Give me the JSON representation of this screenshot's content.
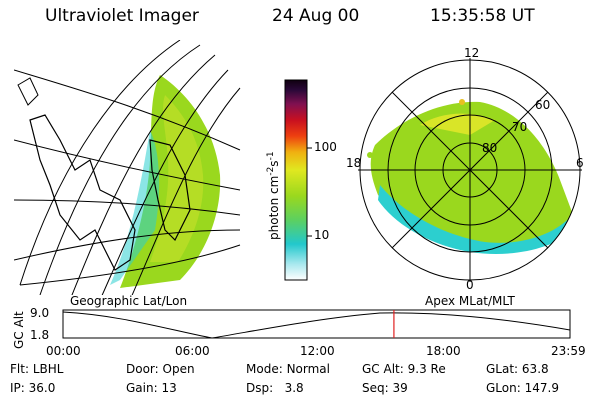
{
  "header": {
    "instrument": "Ultraviolet Imager",
    "date": "24 Aug 00",
    "time": "15:35:58 UT"
  },
  "colorbar": {
    "unit_text": "photon cm",
    "unit_exp1": "-2",
    "unit_s": "s",
    "unit_exp2": "-1",
    "ticks": [
      {
        "label": "100",
        "value": 100
      },
      {
        "label": "10",
        "value": 10
      }
    ]
  },
  "polar": {
    "lat_labels": [
      "60",
      "70",
      "80"
    ],
    "mlt_labels": {
      "top": "12",
      "left": "18",
      "right": "6",
      "bottom": "0"
    }
  },
  "panel_labels": {
    "left": "Geographic Lat/Lon",
    "right": "Apex MLat/MLT"
  },
  "altitude_plot": {
    "ylabel": "GC Alt",
    "y_ticks": [
      "9.0",
      "1.8"
    ],
    "x_ticks": [
      "00:00",
      "06:00",
      "12:00",
      "18:00",
      "23:59"
    ],
    "marker_time_fraction": 0.6527,
    "colors": {
      "marker": "#e02020",
      "line": "#000000"
    }
  },
  "status": {
    "row1": [
      {
        "label": "Flt:",
        "value": "LBHL"
      },
      {
        "label": "Door:",
        "value": "Open"
      },
      {
        "label": "Mode:",
        "value": "Normal"
      },
      {
        "label": "GC Alt:",
        "value": "9.3 Re"
      },
      {
        "label": "GLat:",
        "value": "63.8"
      }
    ],
    "row2": [
      {
        "label": "IP:",
        "value": "36.0"
      },
      {
        "label": "Gain:",
        "value": "13"
      },
      {
        "label": "Dsp:",
        "value": "3.8"
      },
      {
        "label": "Seq:",
        "value": "39"
      },
      {
        "label": "GLon:",
        "value": "147.9"
      }
    ]
  },
  "colors": {
    "aurora_green": "#9ad81e",
    "aurora_cyan": "#2ccfcf",
    "aurora_yellow": "#e8e82a"
  }
}
